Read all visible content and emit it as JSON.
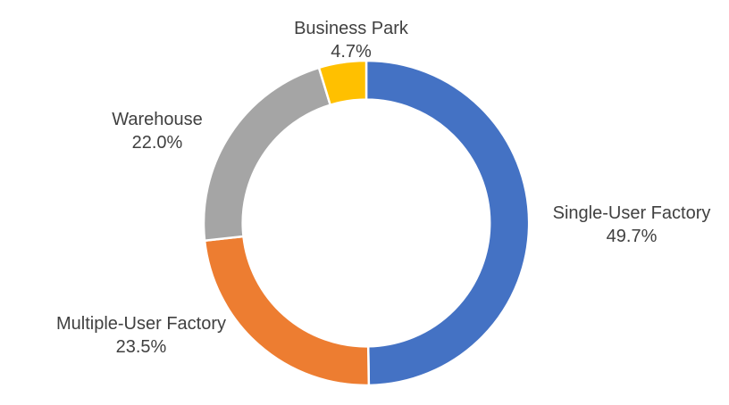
{
  "page": {
    "background": "#FFFFFF"
  },
  "chart_data": {
    "type": "pie",
    "subtype": "donut",
    "title": "",
    "legend_position": "none",
    "direction": "clockwise",
    "start_angle_deg": 0,
    "hole_ratio": 0.76,
    "separator_color": "#FFFFFF",
    "label_color": "#404040",
    "label_style": "category name + percentage, outside",
    "segments": [
      {
        "label": "Single-User Factory",
        "value": 49.7,
        "pct_label": "49.7%",
        "color": "#4472C4"
      },
      {
        "label": "Multiple-User Factory",
        "value": 23.5,
        "pct_label": "23.5%",
        "color": "#ED7D31"
      },
      {
        "label": "Warehouse",
        "value": 22.0,
        "pct_label": "22.0%",
        "color": "#A5A5A5"
      },
      {
        "label": "Business Park",
        "value": 4.7,
        "pct_label": "4.7%",
        "color": "#FFC000"
      }
    ]
  }
}
